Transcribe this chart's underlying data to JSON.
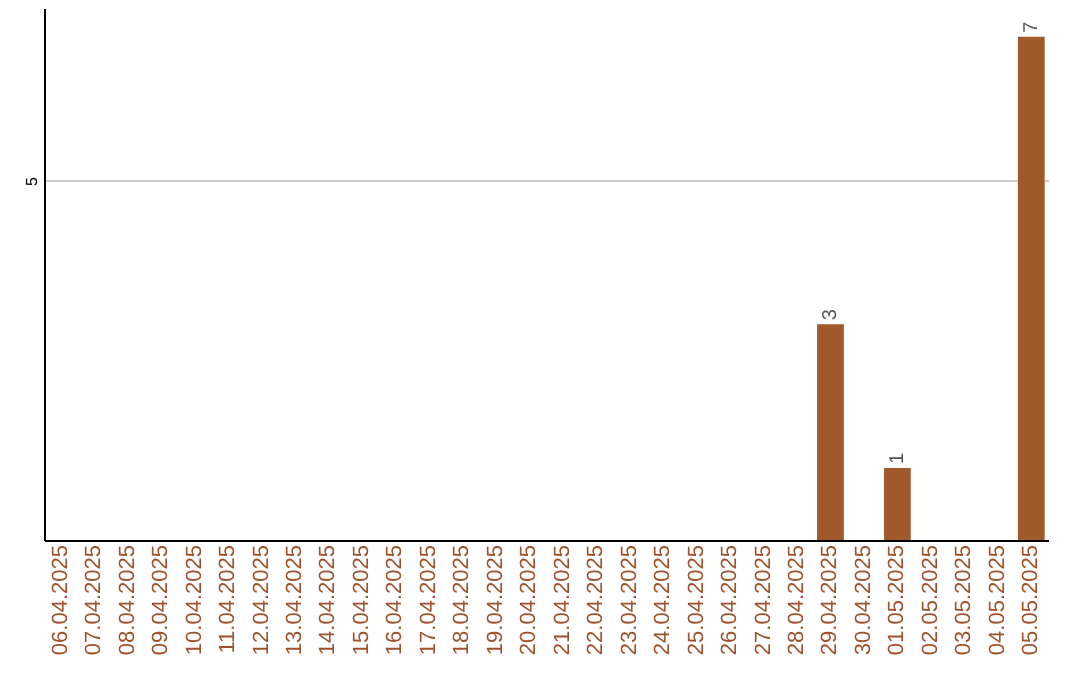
{
  "chart_data": {
    "type": "bar",
    "categories": [
      "06.04.2025",
      "07.04.2025",
      "08.04.2025",
      "09.04.2025",
      "10.04.2025",
      "11.04.2025",
      "12.04.2025",
      "13.04.2025",
      "14.04.2025",
      "15.04.2025",
      "16.04.2025",
      "17.04.2025",
      "18.04.2025",
      "19.04.2025",
      "20.04.2025",
      "21.04.2025",
      "22.04.2025",
      "23.04.2025",
      "24.04.2025",
      "25.04.2025",
      "26.04.2025",
      "27.04.2025",
      "28.04.2025",
      "29.04.2025",
      "30.04.2025",
      "01.05.2025",
      "02.05.2025",
      "03.05.2025",
      "04.05.2025",
      "05.05.2025"
    ],
    "values": [
      null,
      null,
      null,
      null,
      null,
      null,
      null,
      null,
      null,
      null,
      null,
      null,
      null,
      null,
      null,
      null,
      null,
      null,
      null,
      null,
      null,
      null,
      null,
      3,
      null,
      1,
      null,
      null,
      null,
      7
    ],
    "data_labels": true,
    "color": "#a0592b",
    "ylim": [
      0,
      7.4
    ],
    "yticks": [
      5
    ],
    "grid": "y"
  }
}
